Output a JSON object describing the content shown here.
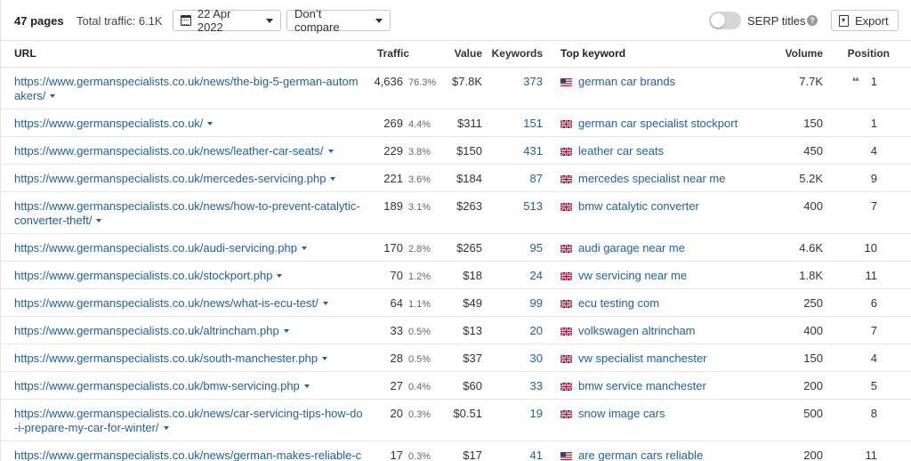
{
  "toolbar": {
    "pages": "47 pages",
    "total_traffic": "Total traffic: 6.1K",
    "date": "22 Apr 2022",
    "compare": "Don’t compare",
    "serp_titles": "SERP titles",
    "serp_titles_enabled": false,
    "help": "?",
    "export": "Export"
  },
  "columns": {
    "url": "URL",
    "traffic": "Traffic",
    "value": "Value",
    "keywords": "Keywords",
    "top_keyword": "Top keyword",
    "volume": "Volume",
    "position": "Position"
  },
  "rows": [
    {
      "url": "https://www.germanspecialists.co.uk/news/the-big-5-german-automakers/",
      "traffic": "4,636",
      "pct": "76.3%",
      "value": "$7.8K",
      "keywords": "373",
      "flag": "us-flag-icon",
      "top_keyword": "german car brands",
      "volume": "7.7K",
      "position": "1",
      "serp_feature": "quote-icon"
    },
    {
      "url": "https://www.germanspecialists.co.uk/",
      "traffic": "269",
      "pct": "4.4%",
      "value": "$311",
      "keywords": "151",
      "flag": "uk-flag-icon",
      "top_keyword": "german car specialist stockport",
      "volume": "150",
      "position": "1"
    },
    {
      "url": "https://www.germanspecialists.co.uk/news/leather-car-seats/",
      "traffic": "229",
      "pct": "3.8%",
      "value": "$150",
      "keywords": "431",
      "flag": "uk-flag-icon",
      "top_keyword": "leather car seats",
      "volume": "450",
      "position": "4"
    },
    {
      "url": "https://www.germanspecialists.co.uk/mercedes-servicing.php",
      "traffic": "221",
      "pct": "3.6%",
      "value": "$184",
      "keywords": "87",
      "flag": "uk-flag-icon",
      "top_keyword": "mercedes specialist near me",
      "volume": "5.2K",
      "position": "9"
    },
    {
      "url": "https://www.germanspecialists.co.uk/news/how-to-prevent-catalytic-converter-theft/",
      "traffic": "189",
      "pct": "3.1%",
      "value": "$263",
      "keywords": "513",
      "flag": "uk-flag-icon",
      "top_keyword": "bmw catalytic converter",
      "volume": "400",
      "position": "7"
    },
    {
      "url": "https://www.germanspecialists.co.uk/audi-servicing.php",
      "traffic": "170",
      "pct": "2.8%",
      "value": "$265",
      "keywords": "95",
      "flag": "uk-flag-icon",
      "top_keyword": "audi garage near me",
      "volume": "4.6K",
      "position": "10"
    },
    {
      "url": "https://www.germanspecialists.co.uk/stockport.php",
      "traffic": "70",
      "pct": "1.2%",
      "value": "$18",
      "keywords": "24",
      "flag": "uk-flag-icon",
      "top_keyword": "vw servicing near me",
      "volume": "1.8K",
      "position": "11"
    },
    {
      "url": "https://www.germanspecialists.co.uk/news/what-is-ecu-test/",
      "traffic": "64",
      "pct": "1.1%",
      "value": "$49",
      "keywords": "99",
      "flag": "uk-flag-icon",
      "top_keyword": "ecu testing com",
      "volume": "250",
      "position": "6"
    },
    {
      "url": "https://www.germanspecialists.co.uk/altrincham.php",
      "traffic": "33",
      "pct": "0.5%",
      "value": "$13",
      "keywords": "20",
      "flag": "uk-flag-icon",
      "top_keyword": "volkswagen altrincham",
      "volume": "400",
      "position": "7"
    },
    {
      "url": "https://www.germanspecialists.co.uk/south-manchester.php",
      "traffic": "28",
      "pct": "0.5%",
      "value": "$37",
      "keywords": "30",
      "flag": "uk-flag-icon",
      "top_keyword": "vw specialist manchester",
      "volume": "150",
      "position": "4"
    },
    {
      "url": "https://www.germanspecialists.co.uk/bmw-servicing.php",
      "traffic": "27",
      "pct": "0.4%",
      "value": "$60",
      "keywords": "33",
      "flag": "uk-flag-icon",
      "top_keyword": "bmw service manchester",
      "volume": "200",
      "position": "5"
    },
    {
      "url": "https://www.germanspecialists.co.uk/news/car-servicing-tips-how-do-i-prepare-my-car-for-winter/",
      "traffic": "20",
      "pct": "0.3%",
      "value": "$0.51",
      "keywords": "19",
      "flag": "uk-flag-icon",
      "top_keyword": "snow image cars",
      "volume": "500",
      "position": "8"
    },
    {
      "url": "https://www.germanspecialists.co.uk/news/german-makes-reliable-car",
      "traffic": "17",
      "pct": "0.3%",
      "value": "$17",
      "keywords": "41",
      "flag": "us-flag-icon",
      "top_keyword": "are german cars reliable",
      "volume": "200",
      "position": "11"
    }
  ],
  "colors": {
    "link": "#1f5fa8",
    "border": "#e3e3e3",
    "toggle_off": "#d6d6d6"
  }
}
